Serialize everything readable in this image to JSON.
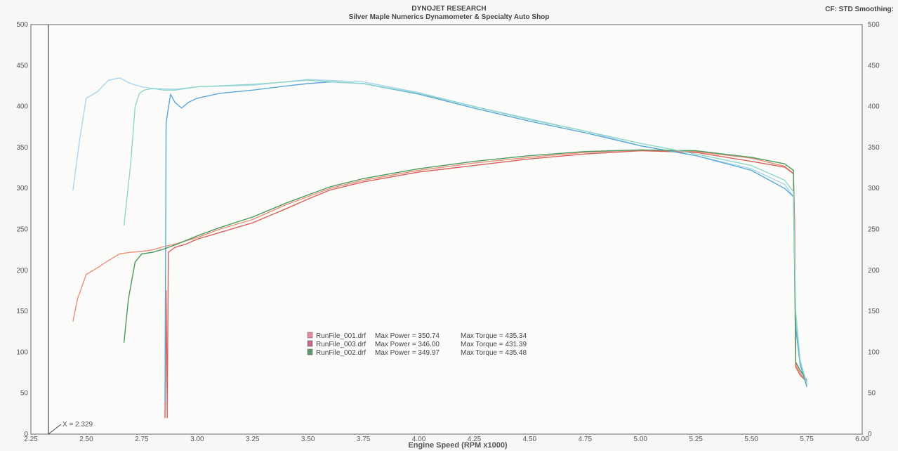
{
  "header": {
    "title": "DYNOJET RESEARCH",
    "subtitle": "Silver Maple Numerics Dynamometer & Specialty Auto Shop",
    "settings": "CF: STD  Smoothing:"
  },
  "chart_data": {
    "type": "line",
    "title": "DYNOJET RESEARCH",
    "subtitle": "Silver Maple Numerics Dynamometer & Specialty Auto Shop",
    "xlabel": "Engine Speed (RPM x1000)",
    "ylabel": "",
    "xlim": [
      2.25,
      6.0
    ],
    "ylim": [
      0,
      500
    ],
    "x_ticks": [
      "2.25",
      "2.50",
      "2.75",
      "3.00",
      "3.25",
      "3.50",
      "3.75",
      "4.00",
      "4.25",
      "4.50",
      "4.75",
      "5.00",
      "5.25",
      "5.50",
      "5.75",
      "6.00"
    ],
    "y_ticks_left": [
      "0",
      "50",
      "100",
      "150",
      "200",
      "250",
      "300",
      "350",
      "400",
      "450",
      "500"
    ],
    "y_ticks_right": [
      "0",
      "50",
      "100",
      "150",
      "200",
      "250",
      "300",
      "350",
      "400",
      "450",
      "500"
    ],
    "grid": true,
    "cursor": {
      "x": 2.329,
      "label": "X = 2.329"
    },
    "colors": {
      "run001_power": "#e8907a",
      "run001_torque": "#a9d4ea",
      "run003_power": "#d9605a",
      "run003_torque": "#5aa8d8",
      "run002_power": "#4c9a5e",
      "run002_torque": "#8fd6c8"
    },
    "legend": [
      {
        "swatch": "#e88aa0",
        "file": "RunFile_001.drf",
        "power_label": "Max Power = 350.74",
        "torque_label": "Max Torque = 435.34"
      },
      {
        "swatch": "#c06a90",
        "file": "RunFile_003.drf",
        "power_label": "Max Power = 346.00",
        "torque_label": "Max Torque = 431.39"
      },
      {
        "swatch": "#5f9a6e",
        "file": "RunFile_002.drf",
        "power_label": "Max Power = 349.97",
        "torque_label": "Max Torque = 435.48"
      }
    ],
    "series": [
      {
        "name": "RunFile_001.drf",
        "color": "#e8907a",
        "x": [
          2.44,
          2.46,
          2.5,
          2.55,
          2.6,
          2.65,
          2.7,
          2.75,
          2.8,
          2.85,
          2.9,
          2.95,
          3.0,
          3.1,
          3.25,
          3.4,
          3.5,
          3.6,
          3.75,
          4.0,
          4.25,
          4.5,
          4.75,
          5.0,
          5.25,
          5.5,
          5.65,
          5.69,
          5.695,
          5.7,
          5.72,
          5.75
        ],
        "y": [
          138,
          165,
          195,
          203,
          212,
          220,
          222,
          223,
          225,
          229,
          232,
          236,
          240,
          250,
          262,
          280,
          290,
          300,
          310,
          322,
          331,
          338,
          344,
          347,
          345,
          337,
          327,
          318,
          250,
          85,
          75,
          62
        ]
      },
      {
        "name": "RunFile_001.drf",
        "color": "#a9d4ea",
        "x": [
          2.44,
          2.47,
          2.5,
          2.55,
          2.6,
          2.65,
          2.7,
          2.75,
          2.8,
          2.9,
          3.0,
          3.25,
          3.5,
          3.75,
          4.0,
          4.25,
          4.5,
          4.75,
          5.0,
          5.25,
          5.5,
          5.65,
          5.69,
          5.7,
          5.72,
          5.75
        ],
        "y": [
          298,
          360,
          410,
          418,
          432,
          435,
          428,
          424,
          422,
          421,
          424,
          426,
          433,
          430,
          417,
          400,
          385,
          370,
          352,
          340,
          324,
          305,
          290,
          140,
          85,
          60
        ]
      },
      {
        "name": "RunFile_003.drf",
        "color": "#d9605a",
        "x": [
          2.855,
          2.86,
          2.865,
          2.87,
          2.9,
          2.95,
          3.0,
          3.1,
          3.25,
          3.4,
          3.5,
          3.6,
          3.75,
          4.0,
          4.25,
          4.5,
          4.75,
          5.0,
          5.25,
          5.5,
          5.65,
          5.69,
          5.695,
          5.7,
          5.72,
          5.75
        ],
        "y": [
          20,
          175,
          20,
          222,
          228,
          232,
          238,
          246,
          258,
          275,
          287,
          298,
          308,
          320,
          328,
          336,
          342,
          346,
          344,
          333,
          326,
          318,
          260,
          82,
          72,
          64
        ]
      },
      {
        "name": "RunFile_003.drf",
        "color": "#5aa8d8",
        "x": [
          2.855,
          2.86,
          2.88,
          2.9,
          2.93,
          2.96,
          3.0,
          3.1,
          3.25,
          3.4,
          3.5,
          3.6,
          3.75,
          4.0,
          4.25,
          4.5,
          4.75,
          5.0,
          5.25,
          5.5,
          5.65,
          5.69,
          5.7,
          5.72,
          5.75
        ],
        "y": [
          40,
          380,
          415,
          405,
          398,
          405,
          410,
          416,
          420,
          425,
          428,
          430,
          428,
          415,
          398,
          382,
          368,
          352,
          340,
          322,
          300,
          290,
          130,
          85,
          58
        ]
      },
      {
        "name": "RunFile_002.drf",
        "color": "#4c9a5e",
        "x": [
          2.67,
          2.69,
          2.72,
          2.75,
          2.8,
          2.85,
          2.9,
          3.0,
          3.1,
          3.25,
          3.4,
          3.5,
          3.6,
          3.75,
          4.0,
          4.25,
          4.5,
          4.75,
          5.0,
          5.25,
          5.5,
          5.65,
          5.69,
          5.7,
          5.72,
          5.75
        ],
        "y": [
          112,
          165,
          210,
          220,
          222,
          226,
          231,
          242,
          252,
          265,
          282,
          292,
          302,
          312,
          324,
          333,
          340,
          345,
          347,
          346,
          338,
          330,
          322,
          88,
          78,
          66
        ]
      },
      {
        "name": "RunFile_002.drf",
        "color": "#8fd6c8",
        "x": [
          2.67,
          2.7,
          2.72,
          2.74,
          2.76,
          2.8,
          2.85,
          2.9,
          3.0,
          3.25,
          3.5,
          3.75,
          4.0,
          4.25,
          4.5,
          4.75,
          5.0,
          5.25,
          5.5,
          5.65,
          5.69,
          5.7,
          5.72,
          5.75
        ],
        "y": [
          255,
          330,
          400,
          416,
          420,
          422,
          420,
          420,
          424,
          427,
          432,
          428,
          416,
          400,
          384,
          370,
          355,
          342,
          328,
          310,
          296,
          150,
          90,
          62
        ]
      }
    ]
  }
}
